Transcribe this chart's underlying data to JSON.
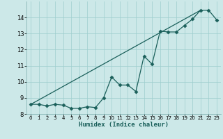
{
  "title": "",
  "xlabel": "Humidex (Indice chaleur)",
  "background_color": "#cce8e8",
  "line_color": "#1a5f5a",
  "xlim": [
    -0.5,
    23.5
  ],
  "ylim": [
    8,
    15
  ],
  "yticks": [
    8,
    9,
    10,
    11,
    12,
    13,
    14
  ],
  "xticks": [
    0,
    1,
    2,
    3,
    4,
    5,
    6,
    7,
    8,
    9,
    10,
    11,
    12,
    13,
    14,
    15,
    16,
    17,
    18,
    19,
    20,
    21,
    22,
    23
  ],
  "line1_x": [
    0,
    1,
    2,
    3,
    4,
    5,
    6,
    7,
    8,
    9,
    10,
    11,
    12,
    13,
    14,
    15,
    16,
    17,
    18,
    19,
    20,
    21,
    22,
    23
  ],
  "line1_y": [
    8.6,
    8.6,
    8.5,
    8.6,
    8.55,
    8.35,
    8.35,
    8.45,
    8.4,
    9.0,
    10.3,
    9.8,
    9.8,
    9.4,
    11.6,
    11.1,
    13.15,
    13.1,
    13.1,
    13.5,
    13.9,
    14.45,
    14.45,
    13.85
  ],
  "line2_x": [
    0,
    21
  ],
  "line2_y": [
    8.6,
    14.45
  ]
}
